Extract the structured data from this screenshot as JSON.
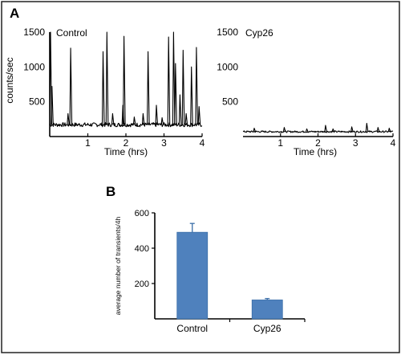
{
  "panel_labels": {
    "a": "A",
    "b": "B"
  },
  "colors": {
    "bar": "#4F81BD",
    "bar_edge": "#3A6EA8",
    "trace": "#000000"
  },
  "chart_data": [
    {
      "panel": "A",
      "type": "line",
      "legend_text": "Control",
      "xlabel": "Time (hrs)",
      "ylabel": "counts/sec",
      "xlim": [
        0,
        4
      ],
      "ylim": [
        0,
        1500
      ],
      "x_ticks": [
        1,
        2,
        3,
        4
      ],
      "y_ticks": [
        1500,
        1000,
        500
      ],
      "baseline": 170,
      "spikes": [
        {
          "x": 0.02,
          "y": 1500
        },
        {
          "x": 0.06,
          "y": 720
        },
        {
          "x": 0.55,
          "y": 1270
        },
        {
          "x": 0.48,
          "y": 330
        },
        {
          "x": 1.4,
          "y": 1220
        },
        {
          "x": 1.5,
          "y": 1500
        },
        {
          "x": 1.65,
          "y": 330
        },
        {
          "x": 1.95,
          "y": 1440
        },
        {
          "x": 1.92,
          "y": 450
        },
        {
          "x": 2.22,
          "y": 280
        },
        {
          "x": 2.45,
          "y": 330
        },
        {
          "x": 2.58,
          "y": 1220
        },
        {
          "x": 2.8,
          "y": 450
        },
        {
          "x": 2.95,
          "y": 270
        },
        {
          "x": 3.12,
          "y": 1430
        },
        {
          "x": 3.25,
          "y": 1500
        },
        {
          "x": 3.3,
          "y": 1050
        },
        {
          "x": 3.42,
          "y": 600
        },
        {
          "x": 3.5,
          "y": 1240
        },
        {
          "x": 3.58,
          "y": 330
        },
        {
          "x": 3.72,
          "y": 1000
        },
        {
          "x": 3.85,
          "y": 1280
        },
        {
          "x": 3.92,
          "y": 430
        }
      ]
    },
    {
      "panel": "A",
      "type": "line",
      "legend_text": "Cyp26",
      "xlabel": "Time (hrs)",
      "ylabel": "",
      "xlim": [
        0,
        4
      ],
      "ylim": [
        0,
        1500
      ],
      "x_ticks": [
        1,
        2,
        3,
        4
      ],
      "y_ticks": [
        1500,
        1000,
        500
      ],
      "baseline": 70,
      "spikes": [
        {
          "x": 0.3,
          "y": 120
        },
        {
          "x": 1.1,
          "y": 130
        },
        {
          "x": 1.7,
          "y": 110
        },
        {
          "x": 2.2,
          "y": 160
        },
        {
          "x": 2.4,
          "y": 110
        },
        {
          "x": 2.9,
          "y": 140
        },
        {
          "x": 3.3,
          "y": 190
        },
        {
          "x": 3.6,
          "y": 130
        },
        {
          "x": 3.9,
          "y": 120
        }
      ]
    },
    {
      "panel": "B",
      "type": "bar",
      "categories": [
        "Control",
        "Cyp26"
      ],
      "values": [
        490,
        107
      ],
      "errors": [
        50,
        8
      ],
      "ylabel": "average number of transients/4h",
      "ylim": [
        0,
        600
      ],
      "y_ticks": [
        600,
        400,
        200
      ]
    }
  ]
}
